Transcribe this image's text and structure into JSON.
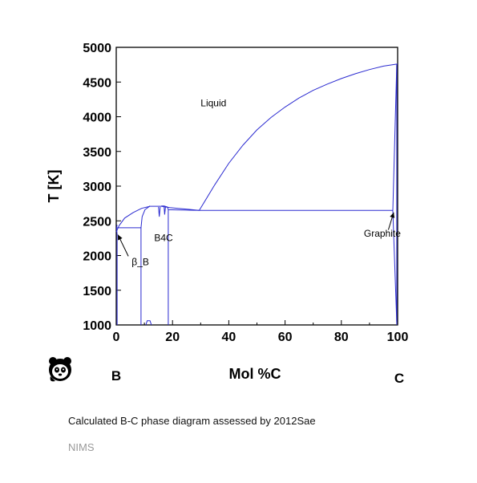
{
  "chart_data": {
    "type": "line",
    "title": "",
    "xlabel": "Mol %C",
    "ylabel": "T [K]",
    "xlim": [
      0,
      100
    ],
    "ylim": [
      1000,
      5000
    ],
    "x_ticks": [
      "0",
      "20",
      "40",
      "60",
      "80",
      "100"
    ],
    "y_ticks": [
      "1000",
      "1500",
      "2000",
      "2500",
      "3000",
      "3500",
      "4000",
      "4500",
      "5000"
    ],
    "endpoint_left": "B",
    "endpoint_right": "C",
    "line_color": "#2a2ad0",
    "series": [
      {
        "values": [
          [
            29.5,
            2650
          ],
          [
            35,
            3020
          ],
          [
            40,
            3330
          ],
          [
            45,
            3590
          ],
          [
            50,
            3810
          ],
          [
            55,
            3990
          ],
          [
            60,
            4140
          ],
          [
            65,
            4270
          ],
          [
            70,
            4380
          ],
          [
            75,
            4470
          ],
          [
            80,
            4550
          ],
          [
            85,
            4620
          ],
          [
            90,
            4680
          ],
          [
            95,
            4730
          ],
          [
            100,
            4760
          ]
        ]
      },
      {
        "values": [
          [
            18.5,
            2660
          ],
          [
            29.5,
            2650
          ],
          [
            98.3,
            2650
          ]
        ]
      },
      {
        "values": [
          [
            0,
            2340
          ],
          [
            1,
            2430
          ],
          [
            3,
            2540
          ],
          [
            6,
            2620
          ],
          [
            9,
            2680
          ],
          [
            12,
            2710
          ],
          [
            16,
            2710
          ],
          [
            19,
            2690
          ],
          [
            22,
            2680
          ],
          [
            26,
            2665
          ],
          [
            29.5,
            2650
          ]
        ]
      },
      {
        "values": [
          [
            0,
            2400
          ],
          [
            8.8,
            2400
          ]
        ]
      },
      {
        "values": [
          [
            0.3,
            1000
          ],
          [
            0.3,
            2300
          ],
          [
            0.1,
            2400
          ],
          [
            0.3,
            2440
          ]
        ]
      },
      {
        "values": [
          [
            8.8,
            1000
          ],
          [
            8.8,
            2400
          ],
          [
            9.2,
            2560
          ],
          [
            10.2,
            2660
          ],
          [
            12,
            2715
          ]
        ]
      },
      {
        "values": [
          [
            18.5,
            1000
          ],
          [
            18.5,
            2660
          ],
          [
            18.2,
            2700
          ],
          [
            17,
            2715
          ],
          [
            16,
            2715
          ]
        ]
      },
      {
        "values": [
          [
            10.5,
            1000
          ],
          [
            11,
            1060
          ],
          [
            12,
            1060
          ],
          [
            12.5,
            1000
          ]
        ]
      },
      {
        "values": [
          [
            15,
            2700
          ],
          [
            15.3,
            2560
          ],
          [
            15.6,
            2700
          ]
        ]
      },
      {
        "values": [
          [
            17,
            2700
          ],
          [
            17.2,
            2590
          ],
          [
            17.5,
            2700
          ]
        ]
      },
      {
        "values": [
          [
            98.3,
            2650
          ],
          [
            99.7,
            1040
          ]
        ]
      },
      {
        "values": [
          [
            98.3,
            2650
          ],
          [
            99.7,
            4740
          ]
        ]
      },
      {
        "values": [
          [
            99.7,
            1000
          ],
          [
            99.7,
            4760
          ]
        ]
      }
    ],
    "annotations": [
      {
        "text": "Liquid",
        "x": 30,
        "y": 4150
      },
      {
        "text": "B4C",
        "x": 13.5,
        "y": 2210
      },
      {
        "text": "β_B",
        "x": 5.5,
        "y": 1860
      },
      {
        "text": "Graphite",
        "x": 88,
        "y": 2270
      }
    ],
    "arrows": [
      {
        "from": [
          4.3,
          1990
        ],
        "to": [
          0.6,
          2300
        ]
      },
      {
        "from": [
          96.7,
          2370
        ],
        "to": [
          98.6,
          2620
        ]
      }
    ]
  },
  "caption": "Calculated B-C phase diagram assessed by 2012Sae",
  "credit": "NIMS",
  "logo_icon": "panda-icon"
}
